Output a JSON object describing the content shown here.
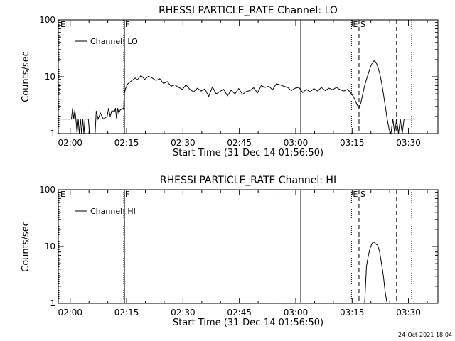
{
  "footer": {
    "timestamp": "24-Oct-2021 18:04"
  },
  "chart_data": [
    {
      "type": "line",
      "title": "RHESSI PARTICLE_RATE Channel: LO",
      "xlabel": "Start Time (31-Dec-14 01:56:50)",
      "ylabel": "Counts/sec",
      "yscale": "log",
      "ylim": [
        1,
        100
      ],
      "xlim_minutes": [
        0,
        101
      ],
      "yticks": [
        {
          "value": 1,
          "label": "1"
        },
        {
          "value": 10,
          "label": "10"
        },
        {
          "value": 100,
          "label": "100"
        }
      ],
      "xticks": [
        {
          "minute": 3.17,
          "label": "02:00"
        },
        {
          "minute": 18.17,
          "label": "02:15"
        },
        {
          "minute": 33.17,
          "label": "02:30"
        },
        {
          "minute": 48.17,
          "label": "02:45"
        },
        {
          "minute": 63.17,
          "label": "03:00"
        },
        {
          "minute": 78.17,
          "label": "03:15"
        },
        {
          "minute": 93.17,
          "label": "03:30"
        }
      ],
      "legend": {
        "position": "top-left",
        "label": "Channel: LO"
      },
      "markers": [
        {
          "minute": 0.2,
          "style": "dotted",
          "label": "E"
        },
        {
          "minute": 17.4,
          "style": "dotted",
          "label": "F"
        },
        {
          "minute": 17.6,
          "style": "solid",
          "label": ""
        },
        {
          "minute": 64.5,
          "style": "solid",
          "label": ""
        },
        {
          "minute": 78.0,
          "style": "dotted",
          "label": "E"
        },
        {
          "minute": 80.0,
          "style": "dashed",
          "label": "S"
        },
        {
          "minute": 90.0,
          "style": "dashed",
          "label": ""
        },
        {
          "minute": 94.0,
          "style": "dotted",
          "label": ""
        }
      ],
      "series": [
        {
          "name": "",
          "minutes": [
            0,
            3.5,
            3.8,
            4.1,
            4.4,
            4.7,
            5.0,
            5.3,
            5.6,
            5.9,
            6.2,
            6.5,
            6.8,
            7.1,
            7.4,
            7.7,
            8.0,
            8.3,
            8.6,
            8.9,
            9.2,
            9.5,
            9.8,
            10.1,
            10.6,
            11.2,
            12,
            13,
            13.4,
            13.8,
            14.2,
            15,
            15.2,
            15.5,
            15.8,
            16.1,
            16.5,
            16.9,
            17.4,
            17.6,
            18.0,
            18.5,
            19.5,
            20.5,
            21,
            22,
            23,
            24,
            25,
            26,
            27,
            28,
            29,
            30,
            31,
            32,
            33,
            34,
            35,
            36,
            37,
            38,
            39,
            40,
            41,
            42,
            43,
            44,
            45,
            46,
            47,
            48,
            49,
            50,
            51,
            52,
            53,
            54,
            55,
            56,
            57,
            58,
            59,
            60,
            61,
            62,
            63,
            64,
            65,
            66,
            67,
            68,
            69,
            70,
            71,
            72,
            73,
            74,
            75,
            76,
            77,
            78,
            78.5,
            79,
            79.5,
            80,
            80.5,
            81,
            81.5,
            82,
            82.5,
            83,
            83.5,
            84,
            84.5,
            85,
            85.5,
            86,
            86.5,
            87,
            87.5,
            88,
            88.5,
            89,
            89.5,
            90,
            90.5,
            91,
            91.5,
            92,
            92.5,
            93,
            93.5,
            94,
            94.5,
            95
          ],
          "values": [
            1.8,
            1.8,
            2.8,
            1.8,
            2.6,
            1.8,
            1.0,
            1.8,
            1.0,
            1.8,
            1.0,
            1.8,
            1.0,
            1.8,
            1.8,
            1.8,
            1.8,
            1.0,
            1.0,
            1.0,
            1.0,
            1.0,
            1.0,
            2.5,
            1.8,
            2.3,
            1.8,
            2.0,
            2.8,
            2.0,
            2.5,
            2.5,
            2.8,
            1.8,
            2.8,
            2.3,
            2.6,
            2.7,
            2.8,
            5.2,
            6.5,
            7.5,
            8.5,
            9.5,
            8.8,
            10.5,
            9.0,
            10.2,
            9.5,
            8.6,
            9.2,
            7.6,
            8.2,
            6.8,
            7.2,
            6.5,
            6.0,
            7.2,
            6.0,
            5.4,
            6.3,
            5.6,
            6.1,
            4.5,
            6.6,
            5.0,
            5.5,
            6.0,
            4.6,
            5.8,
            5.0,
            6.2,
            4.9,
            5.5,
            5.7,
            6.4,
            5.2,
            7.0,
            6.5,
            6.8,
            5.9,
            7.5,
            7.2,
            6.8,
            6.5,
            5.7,
            6.3,
            6.5,
            5.3,
            6.0,
            5.4,
            6.2,
            5.6,
            6.5,
            5.7,
            6.3,
            5.9,
            6.5,
            5.9,
            5.6,
            6.0,
            5.0,
            4.5,
            3.8,
            3.2,
            2.8,
            3.5,
            5.0,
            7.0,
            9.0,
            11.5,
            14.5,
            17.5,
            19.0,
            18.0,
            15.0,
            11.5,
            8.0,
            5.0,
            3.0,
            1.8,
            1.2,
            1.0,
            1.8,
            1.0,
            1.8,
            1.0,
            1.8,
            1.0,
            1.8,
            1.8,
            1.8,
            1.8,
            1.8,
            1.8,
            1.8
          ]
        }
      ]
    },
    {
      "type": "line",
      "title": "RHESSI PARTICLE_RATE Channel: HI",
      "xlabel": "Start Time (31-Dec-14 01:56:50)",
      "ylabel": "Counts/sec",
      "yscale": "log",
      "ylim": [
        1,
        100
      ],
      "xlim_minutes": [
        0,
        101
      ],
      "yticks": [
        {
          "value": 1,
          "label": "1"
        },
        {
          "value": 10,
          "label": "10"
        },
        {
          "value": 100,
          "label": "100"
        }
      ],
      "xticks": [
        {
          "minute": 3.17,
          "label": "02:00"
        },
        {
          "minute": 18.17,
          "label": "02:15"
        },
        {
          "minute": 33.17,
          "label": "02:30"
        },
        {
          "minute": 48.17,
          "label": "02:45"
        },
        {
          "minute": 63.17,
          "label": "03:00"
        },
        {
          "minute": 78.17,
          "label": "03:15"
        },
        {
          "minute": 93.17,
          "label": "03:30"
        }
      ],
      "legend": {
        "position": "top-left",
        "label": "Channel: HI"
      },
      "markers": [
        {
          "minute": 0.2,
          "style": "dotted",
          "label": "E"
        },
        {
          "minute": 17.4,
          "style": "dotted",
          "label": "F"
        },
        {
          "minute": 17.6,
          "style": "solid",
          "label": ""
        },
        {
          "minute": 64.5,
          "style": "solid",
          "label": ""
        },
        {
          "minute": 78.0,
          "style": "dotted",
          "label": "E"
        },
        {
          "minute": 80.0,
          "style": "dashed",
          "label": "S"
        },
        {
          "minute": 90.0,
          "style": "dashed",
          "label": ""
        },
        {
          "minute": 94.0,
          "style": "dotted",
          "label": ""
        }
      ],
      "series": [
        {
          "name": "",
          "minutes": [
            81.5,
            82,
            82.5,
            83,
            83.5,
            84,
            84.5,
            85,
            85.5,
            86,
            86.5,
            87,
            87.5
          ],
          "values": [
            1.0,
            4.5,
            7.0,
            9.5,
            11.5,
            12.0,
            11.0,
            10.5,
            8.0,
            5.0,
            3.0,
            1.5,
            1.0
          ]
        }
      ]
    }
  ]
}
